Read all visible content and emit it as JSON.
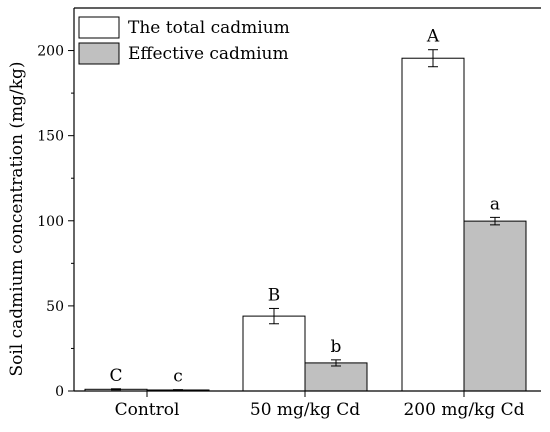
{
  "chart_data": {
    "type": "bar",
    "categories": [
      "Control",
      "50 mg/kg Cd",
      "200 mg/kg Cd"
    ],
    "ylabel": "Soil cadmium concentration (mg/kg)",
    "xlabel": "",
    "ylim": [
      0,
      225
    ],
    "yticks": [
      0,
      50,
      100,
      150,
      200
    ],
    "legend_position": "top-left",
    "series": [
      {
        "name": "The total cadmium",
        "color": "#ffffff",
        "values": [
          1.0,
          44.0,
          195.5
        ],
        "errors": [
          0.3,
          4.5,
          5.0
        ],
        "labels": [
          "C",
          "B",
          "A"
        ]
      },
      {
        "name": "Effective cadmium",
        "color": "#c0c0c0",
        "values": [
          0.6,
          16.5,
          99.8
        ],
        "errors": [
          0.2,
          1.8,
          2.2
        ],
        "labels": [
          "c",
          "b",
          "a"
        ]
      }
    ]
  }
}
